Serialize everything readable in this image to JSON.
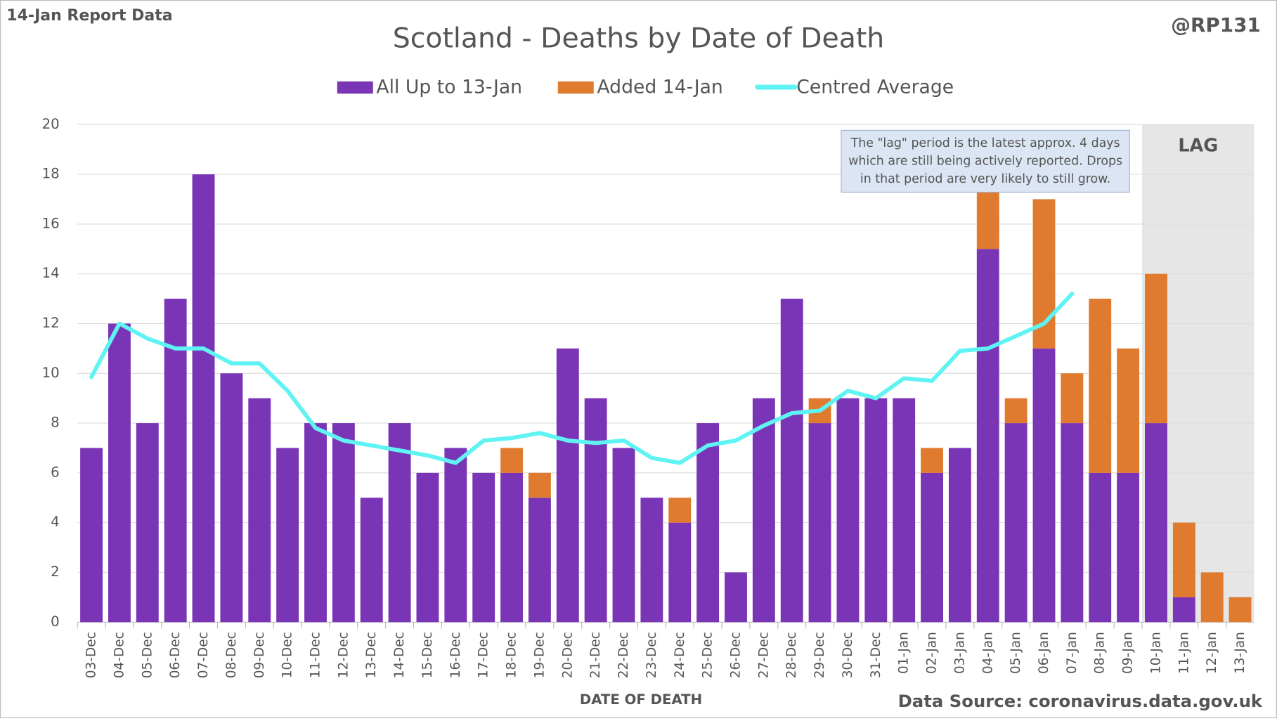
{
  "chart_data": {
    "type": "stacked_bar_line",
    "title": "Scotland - Deaths by Date of Death",
    "report_label": "14-Jan Report Data",
    "handle": "@RP131",
    "source": "Data Source: coronavirus.data.gov.uk",
    "x_label": "DATE OF DEATH",
    "lag_label": "LAG",
    "annotation": [
      "The \"lag\" period is the latest approx. 4 days",
      "which are still being actively reported.  Drops",
      "in that period are very likely to still grow."
    ],
    "categories": [
      "03-Dec",
      "04-Dec",
      "05-Dec",
      "06-Dec",
      "07-Dec",
      "08-Dec",
      "09-Dec",
      "10-Dec",
      "11-Dec",
      "12-Dec",
      "13-Dec",
      "14-Dec",
      "15-Dec",
      "16-Dec",
      "17-Dec",
      "18-Dec",
      "19-Dec",
      "20-Dec",
      "21-Dec",
      "22-Dec",
      "23-Dec",
      "24-Dec",
      "25-Dec",
      "26-Dec",
      "27-Dec",
      "28-Dec",
      "29-Dec",
      "30-Dec",
      "31-Dec",
      "01-Jan",
      "02-Jan",
      "03-Jan",
      "04-Jan",
      "05-Jan",
      "06-Jan",
      "07-Jan",
      "08-Jan",
      "09-Jan",
      "10-Jan",
      "11-Jan",
      "12-Jan",
      "13-Jan"
    ],
    "series": [
      {
        "name": "All Up to 13-Jan",
        "color": "#7a35b6",
        "kind": "bar",
        "values": [
          7,
          12,
          8,
          13,
          18,
          10,
          9,
          7,
          8,
          8,
          5,
          8,
          6,
          7,
          6,
          6,
          5,
          11,
          9,
          7,
          5,
          4,
          8,
          2,
          9,
          13,
          8,
          9,
          9,
          9,
          6,
          7,
          15,
          8,
          11,
          8,
          6,
          6,
          8,
          1,
          0,
          0
        ]
      },
      {
        "name": "Added 14-Jan",
        "color": "#e07a2e",
        "kind": "bar",
        "values": [
          0,
          0,
          0,
          0,
          0,
          0,
          0,
          0,
          0,
          0,
          0,
          0,
          0,
          0,
          0,
          1,
          1,
          0,
          0,
          0,
          0,
          1,
          0,
          0,
          0,
          0,
          1,
          0,
          0,
          0,
          1,
          0,
          3,
          1,
          6,
          2,
          7,
          5,
          6,
          3,
          2,
          1
        ]
      },
      {
        "name": "Centred Average",
        "color": "#5ff3f3",
        "kind": "line",
        "values": [
          9.85,
          12.0,
          11.4,
          11.0,
          11.0,
          10.4,
          10.4,
          9.3,
          7.8,
          7.3,
          7.1,
          6.9,
          6.7,
          6.4,
          7.3,
          7.4,
          7.6,
          7.3,
          7.2,
          7.3,
          6.6,
          6.4,
          7.1,
          7.3,
          7.9,
          8.4,
          8.5,
          9.3,
          9.0,
          9.8,
          9.7,
          10.9,
          11.0,
          11.5,
          12.0,
          13.2,
          null,
          null,
          null,
          null,
          null,
          null
        ]
      }
    ],
    "ylim": [
      0,
      20
    ],
    "yticks": [
      0,
      2,
      4,
      6,
      8,
      10,
      12,
      14,
      16,
      18,
      20
    ],
    "grid": true
  }
}
